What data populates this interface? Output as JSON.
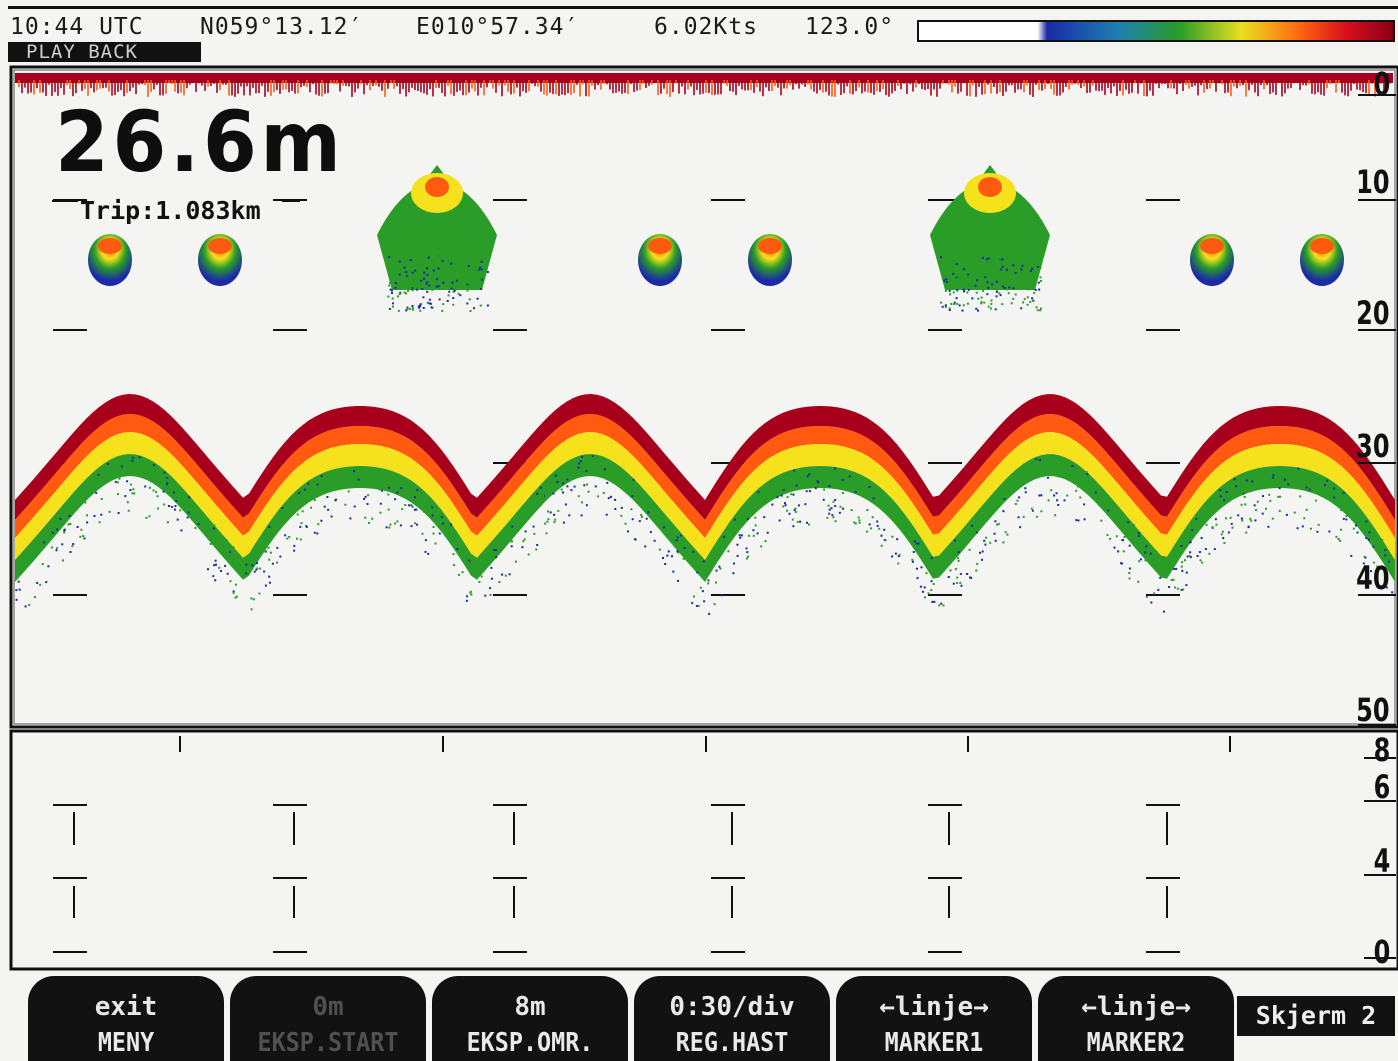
{
  "status": {
    "time": "10:44 UTC",
    "latitude": "N059°13.12′",
    "longitude": "E010°57.34′",
    "speed": "6.02Kts",
    "heading": "123.0°",
    "mode": "PLAY BACK"
  },
  "upper_echogram": {
    "depth_readout": "26.6m",
    "trip": "Trip:1.083km",
    "depth_labels": [
      "0",
      "10",
      "20",
      "30",
      "40",
      "50"
    ]
  },
  "lower_echogram": {
    "depth_labels": [
      "8",
      "6",
      "4",
      "0"
    ]
  },
  "colors": {
    "background": "#f4f4f2",
    "echo_strong": "#a8001c",
    "echo_medium": "#ff5a10",
    "echo_weak": "#f6e21c",
    "echo_faint": "#2a9c28",
    "echo_trace": "#1a2aa8",
    "softkey_bg": "#121212"
  },
  "softkeys": [
    {
      "value": "exit",
      "label": "MENY",
      "enabled": true
    },
    {
      "value": "0m",
      "label": "EKSP.START",
      "enabled": false
    },
    {
      "value": "8m",
      "label": "EKSP.OMR.",
      "enabled": true
    },
    {
      "value": "0:30/div",
      "label": "REG.HAST",
      "enabled": true
    },
    {
      "value": "←linje→",
      "label": "MARKER1",
      "enabled": true
    },
    {
      "value": "←linje→",
      "label": "MARKER2",
      "enabled": true
    }
  ],
  "screen_selector": "Skjerm 2"
}
